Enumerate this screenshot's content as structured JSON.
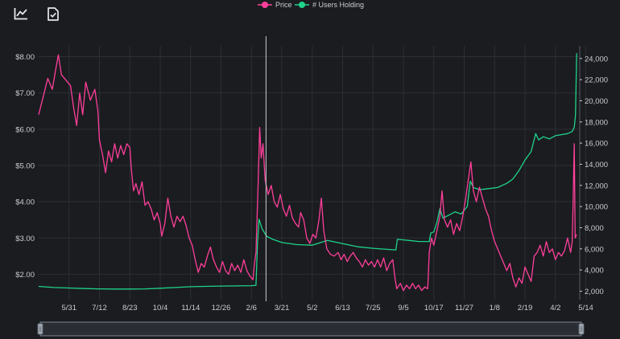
{
  "toolbar": {
    "icons": [
      "line-chart-icon",
      "file-check-icon"
    ]
  },
  "colors": {
    "price": "#ff3f9a",
    "users": "#1fd38a",
    "background": "#1b1c20",
    "grid": "#2c2f35",
    "text": "#c9ccd1",
    "cursor": "#c9ccd1"
  },
  "chart_data": {
    "type": "line",
    "legend": {
      "position": "top-center"
    },
    "grid": true,
    "x_ticks": [
      "5/31",
      "7/12",
      "8/23",
      "10/4",
      "11/14",
      "12/26",
      "2/6",
      "3/21",
      "5/2",
      "6/13",
      "7/25",
      "9/5",
      "10/17",
      "11/27",
      "1/8",
      "2/19",
      "4/2",
      "5/14"
    ],
    "y_left": {
      "ticks": [
        "$2.00",
        "$3.00",
        "$4.00",
        "$5.00",
        "$6.00",
        "$7.00",
        "$8.00"
      ],
      "tick_values": [
        2,
        3,
        4,
        5,
        6,
        7,
        8
      ],
      "range": [
        1.3,
        8.3
      ]
    },
    "y_right": {
      "ticks": [
        "2,000",
        "4,000",
        "6,000",
        "8,000",
        "10,000",
        "12,000",
        "14,000",
        "16,000",
        "18,000",
        "20,000",
        "22,000",
        "24,000"
      ],
      "tick_values": [
        2000,
        4000,
        6000,
        8000,
        10000,
        12000,
        14000,
        16000,
        18000,
        20000,
        22000,
        24000
      ],
      "range": [
        1200,
        25200
      ]
    },
    "x_range": [
      0,
      17.8
    ],
    "cursor_x": 7.48,
    "series": [
      {
        "name": "Price",
        "axis": "left",
        "points": [
          [
            0,
            6.4
          ],
          [
            0.15,
            6.9
          ],
          [
            0.3,
            7.4
          ],
          [
            0.45,
            7.1
          ],
          [
            0.55,
            7.6
          ],
          [
            0.65,
            8.05
          ],
          [
            0.75,
            7.5
          ],
          [
            0.9,
            7.35
          ],
          [
            1.05,
            7.2
          ],
          [
            1.15,
            6.6
          ],
          [
            1.25,
            6.1
          ],
          [
            1.35,
            7.0
          ],
          [
            1.45,
            6.4
          ],
          [
            1.55,
            7.3
          ],
          [
            1.7,
            6.8
          ],
          [
            1.85,
            7.1
          ],
          [
            1.95,
            6.5
          ],
          [
            2.0,
            5.7
          ],
          [
            2.1,
            5.3
          ],
          [
            2.2,
            4.8
          ],
          [
            2.3,
            5.4
          ],
          [
            2.4,
            5.1
          ],
          [
            2.5,
            5.6
          ],
          [
            2.6,
            5.2
          ],
          [
            2.7,
            5.55
          ],
          [
            2.8,
            5.3
          ],
          [
            2.9,
            5.6
          ],
          [
            3.0,
            5.5
          ],
          [
            3.05,
            4.9
          ],
          [
            3.12,
            4.3
          ],
          [
            3.2,
            4.5
          ],
          [
            3.3,
            4.2
          ],
          [
            3.4,
            4.55
          ],
          [
            3.5,
            3.9
          ],
          [
            3.6,
            4.0
          ],
          [
            3.7,
            3.8
          ],
          [
            3.8,
            3.5
          ],
          [
            3.9,
            3.7
          ],
          [
            4.0,
            3.4
          ],
          [
            4.05,
            3.05
          ],
          [
            4.15,
            3.4
          ],
          [
            4.25,
            4.1
          ],
          [
            4.35,
            3.6
          ],
          [
            4.45,
            3.3
          ],
          [
            4.55,
            3.6
          ],
          [
            4.65,
            3.45
          ],
          [
            4.75,
            3.6
          ],
          [
            4.85,
            3.35
          ],
          [
            4.95,
            3.0
          ],
          [
            5.05,
            2.8
          ],
          [
            5.15,
            2.4
          ],
          [
            5.25,
            2.05
          ],
          [
            5.35,
            2.3
          ],
          [
            5.45,
            2.2
          ],
          [
            5.55,
            2.5
          ],
          [
            5.65,
            2.75
          ],
          [
            5.75,
            2.4
          ],
          [
            5.85,
            2.2
          ],
          [
            5.95,
            2.05
          ],
          [
            6.05,
            2.35
          ],
          [
            6.15,
            2.1
          ],
          [
            6.25,
            2.0
          ],
          [
            6.35,
            2.3
          ],
          [
            6.45,
            2.1
          ],
          [
            6.55,
            2.25
          ],
          [
            6.65,
            2.05
          ],
          [
            6.75,
            2.4
          ],
          [
            6.85,
            2.1
          ],
          [
            6.95,
            1.95
          ],
          [
            7.05,
            1.85
          ],
          [
            7.1,
            2.3
          ],
          [
            7.15,
            2.6
          ],
          [
            7.22,
            4.5
          ],
          [
            7.27,
            6.05
          ],
          [
            7.32,
            5.2
          ],
          [
            7.38,
            5.6
          ],
          [
            7.45,
            4.6
          ],
          [
            7.55,
            4.2
          ],
          [
            7.65,
            4.45
          ],
          [
            7.75,
            4.0
          ],
          [
            7.85,
            3.85
          ],
          [
            7.95,
            4.2
          ],
          [
            8.05,
            3.8
          ],
          [
            8.15,
            3.6
          ],
          [
            8.25,
            3.9
          ],
          [
            8.35,
            3.55
          ],
          [
            8.45,
            3.4
          ],
          [
            8.55,
            3.3
          ],
          [
            8.62,
            3.7
          ],
          [
            8.72,
            3.5
          ],
          [
            8.82,
            3.0
          ],
          [
            8.92,
            2.85
          ],
          [
            9.02,
            3.1
          ],
          [
            9.12,
            3.0
          ],
          [
            9.22,
            3.5
          ],
          [
            9.3,
            4.1
          ],
          [
            9.38,
            3.2
          ],
          [
            9.48,
            2.7
          ],
          [
            9.6,
            2.55
          ],
          [
            9.72,
            2.5
          ],
          [
            9.85,
            2.6
          ],
          [
            9.95,
            2.4
          ],
          [
            10.05,
            2.55
          ],
          [
            10.15,
            2.35
          ],
          [
            10.25,
            2.5
          ],
          [
            10.35,
            2.6
          ],
          [
            10.45,
            2.45
          ],
          [
            10.55,
            2.35
          ],
          [
            10.65,
            2.2
          ],
          [
            10.75,
            2.4
          ],
          [
            10.85,
            2.25
          ],
          [
            10.95,
            2.35
          ],
          [
            11.05,
            2.2
          ],
          [
            11.15,
            2.4
          ],
          [
            11.25,
            2.2
          ],
          [
            11.35,
            2.45
          ],
          [
            11.45,
            2.1
          ],
          [
            11.55,
            2.3
          ],
          [
            11.65,
            2.4
          ],
          [
            11.72,
            1.9
          ],
          [
            11.78,
            1.6
          ],
          [
            11.9,
            1.75
          ],
          [
            12.0,
            1.55
          ],
          [
            12.1,
            1.7
          ],
          [
            12.2,
            1.6
          ],
          [
            12.3,
            1.75
          ],
          [
            12.4,
            1.6
          ],
          [
            12.5,
            1.7
          ],
          [
            12.6,
            1.55
          ],
          [
            12.7,
            1.65
          ],
          [
            12.8,
            1.6
          ],
          [
            12.85,
            2.6
          ],
          [
            12.92,
            3.0
          ],
          [
            13.0,
            2.8
          ],
          [
            13.1,
            3.2
          ],
          [
            13.2,
            3.6
          ],
          [
            13.27,
            4.3
          ],
          [
            13.35,
            3.5
          ],
          [
            13.45,
            3.3
          ],
          [
            13.55,
            3.5
          ],
          [
            13.65,
            3.1
          ],
          [
            13.75,
            3.4
          ],
          [
            13.85,
            3.2
          ],
          [
            13.95,
            3.6
          ],
          [
            14.05,
            4.1
          ],
          [
            14.15,
            4.7
          ],
          [
            14.22,
            5.1
          ],
          [
            14.3,
            4.3
          ],
          [
            14.4,
            4.0
          ],
          [
            14.5,
            4.4
          ],
          [
            14.6,
            4.1
          ],
          [
            14.7,
            3.8
          ],
          [
            14.8,
            3.6
          ],
          [
            14.9,
            3.2
          ],
          [
            15.0,
            2.9
          ],
          [
            15.1,
            2.7
          ],
          [
            15.2,
            2.5
          ],
          [
            15.3,
            2.3
          ],
          [
            15.4,
            2.1
          ],
          [
            15.5,
            2.3
          ],
          [
            15.6,
            1.9
          ],
          [
            15.7,
            1.65
          ],
          [
            15.8,
            1.9
          ],
          [
            15.9,
            1.75
          ],
          [
            16.0,
            2.2
          ],
          [
            16.1,
            2.0
          ],
          [
            16.2,
            1.8
          ],
          [
            16.3,
            2.5
          ],
          [
            16.4,
            2.6
          ],
          [
            16.5,
            2.8
          ],
          [
            16.6,
            2.5
          ],
          [
            16.7,
            2.9
          ],
          [
            16.8,
            2.6
          ],
          [
            16.9,
            2.7
          ],
          [
            17.0,
            2.4
          ],
          [
            17.1,
            2.6
          ],
          [
            17.2,
            2.5
          ],
          [
            17.3,
            2.65
          ],
          [
            17.4,
            3.0
          ],
          [
            17.5,
            2.6
          ],
          [
            17.55,
            2.9
          ],
          [
            17.58,
            3.9
          ],
          [
            17.62,
            5.6
          ],
          [
            17.65,
            3.0
          ],
          [
            17.7,
            3.1
          ]
        ]
      },
      {
        "name": "# Users Holding",
        "axis": "right",
        "points": [
          [
            0,
            2450
          ],
          [
            0.5,
            2350
          ],
          [
            1.0,
            2300
          ],
          [
            1.5,
            2250
          ],
          [
            2.0,
            2220
          ],
          [
            2.5,
            2200
          ],
          [
            3.0,
            2200
          ],
          [
            3.5,
            2220
          ],
          [
            4.0,
            2280
          ],
          [
            4.5,
            2350
          ],
          [
            5.0,
            2420
          ],
          [
            5.5,
            2450
          ],
          [
            6.0,
            2480
          ],
          [
            6.5,
            2500
          ],
          [
            7.0,
            2520
          ],
          [
            7.15,
            2550
          ],
          [
            7.2,
            6500
          ],
          [
            7.25,
            8800
          ],
          [
            7.35,
            7900
          ],
          [
            7.5,
            7200
          ],
          [
            7.7,
            6900
          ],
          [
            8.0,
            6600
          ],
          [
            8.5,
            6400
          ],
          [
            9.0,
            6350
          ],
          [
            9.5,
            6800
          ],
          [
            10.0,
            6500
          ],
          [
            10.5,
            6200
          ],
          [
            11.0,
            6050
          ],
          [
            11.5,
            5950
          ],
          [
            11.75,
            5900
          ],
          [
            11.8,
            6900
          ],
          [
            12.0,
            6850
          ],
          [
            12.5,
            6700
          ],
          [
            12.85,
            6700
          ],
          [
            12.9,
            7500
          ],
          [
            13.0,
            7600
          ],
          [
            13.1,
            8500
          ],
          [
            13.2,
            9800
          ],
          [
            13.3,
            8900
          ],
          [
            13.5,
            9200
          ],
          [
            13.7,
            9500
          ],
          [
            13.9,
            9300
          ],
          [
            14.1,
            10000
          ],
          [
            14.2,
            12400
          ],
          [
            14.3,
            11800
          ],
          [
            14.5,
            11600
          ],
          [
            14.8,
            11700
          ],
          [
            15.1,
            11800
          ],
          [
            15.4,
            12200
          ],
          [
            15.6,
            12600
          ],
          [
            15.8,
            13400
          ],
          [
            16.0,
            14400
          ],
          [
            16.2,
            15200
          ],
          [
            16.35,
            16900
          ],
          [
            16.45,
            16300
          ],
          [
            16.6,
            16600
          ],
          [
            16.8,
            16400
          ],
          [
            17.0,
            16700
          ],
          [
            17.2,
            16800
          ],
          [
            17.4,
            16900
          ],
          [
            17.55,
            17100
          ],
          [
            17.62,
            17500
          ],
          [
            17.66,
            18600
          ],
          [
            17.7,
            24500
          ]
        ]
      }
    ]
  }
}
